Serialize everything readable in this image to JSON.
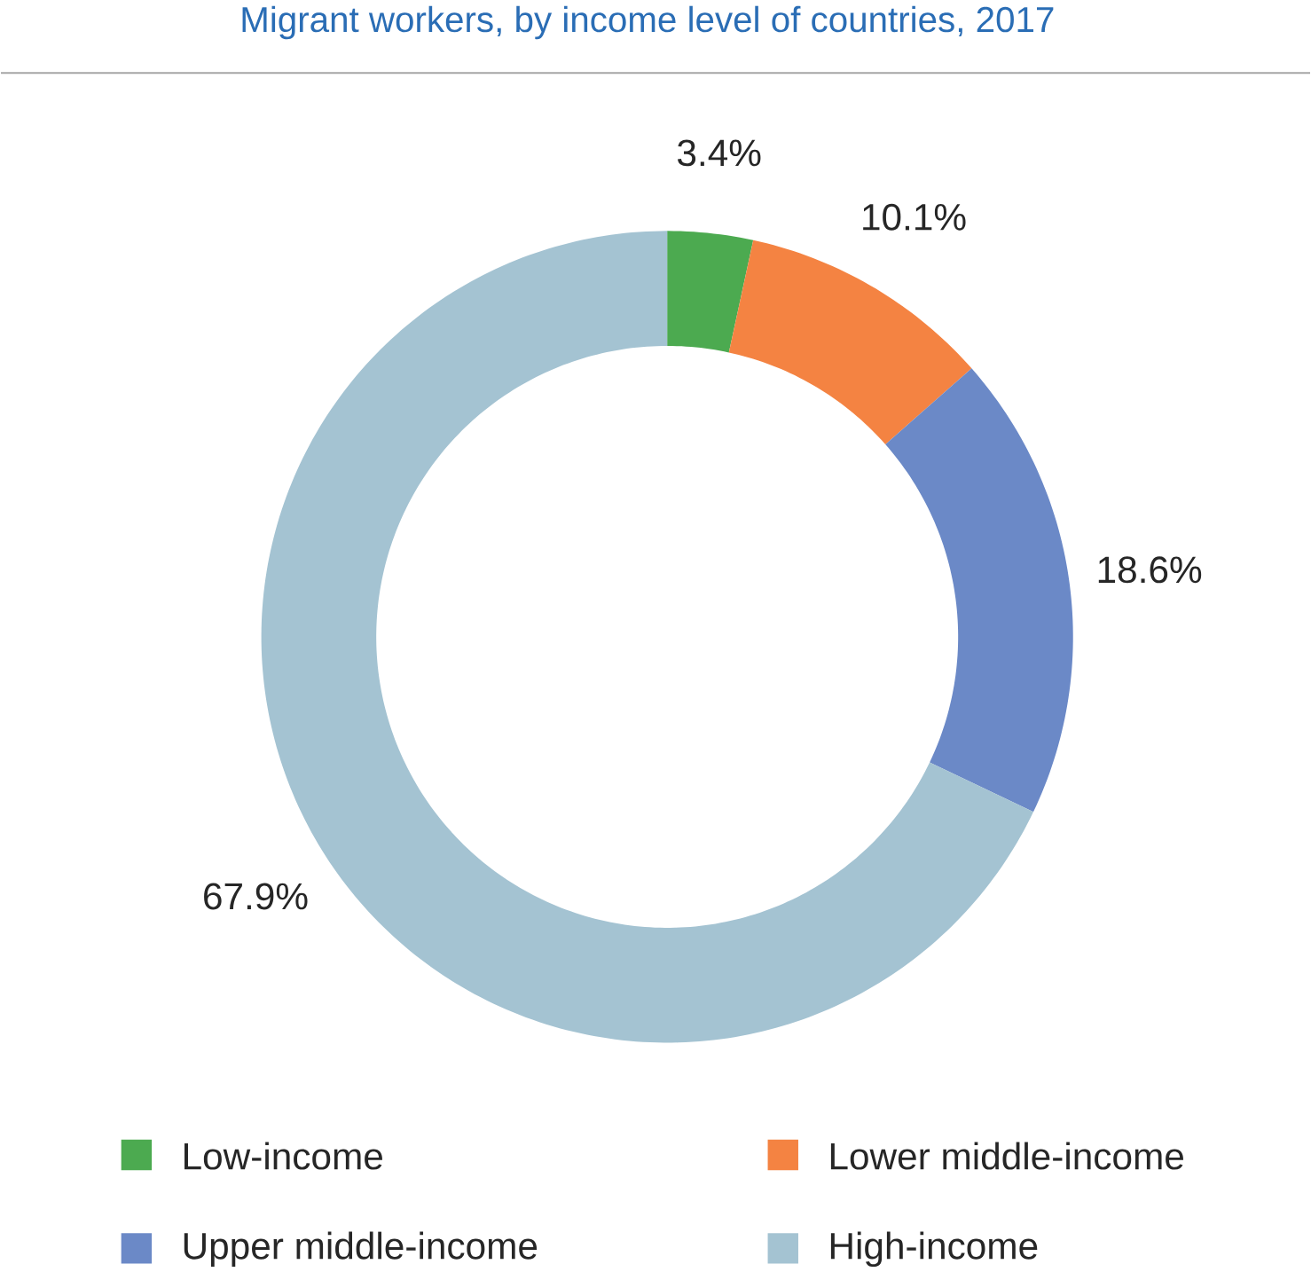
{
  "chart_data": {
    "type": "donut",
    "title": "Migrant workers, by income level of countries, 2017",
    "categories": [
      "Low-income",
      "Lower middle-income",
      "Upper middle-income",
      "High-income"
    ],
    "values": [
      3.4,
      10.1,
      18.6,
      67.9
    ],
    "value_labels": [
      "3.4%",
      "10.1%",
      "18.6%",
      "67.9%"
    ],
    "colors": [
      "#4caa50",
      "#f48342",
      "#6b89c7",
      "#a4c3d2"
    ],
    "legend": "bottom"
  }
}
